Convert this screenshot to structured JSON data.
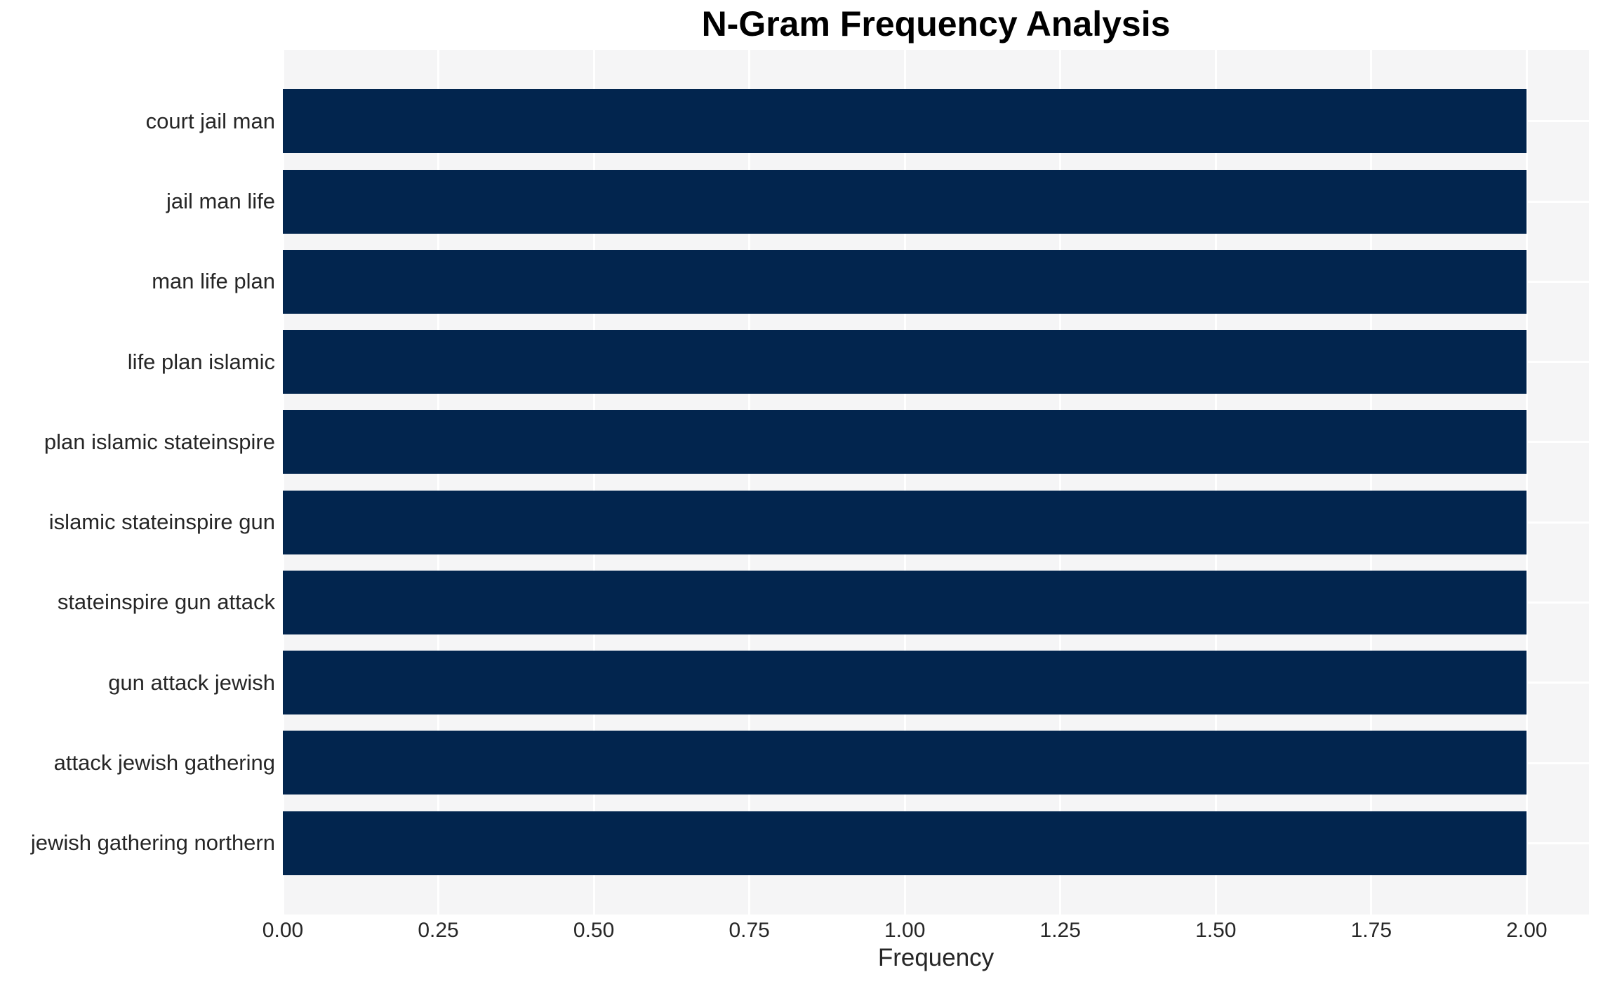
{
  "chart_data": {
    "type": "bar",
    "orientation": "horizontal",
    "title": "N-Gram Frequency Analysis",
    "xlabel": "Frequency",
    "ylabel": "",
    "categories": [
      "court jail man",
      "jail man life",
      "man life plan",
      "life plan islamic",
      "plan islamic stateinspire",
      "islamic stateinspire gun",
      "stateinspire gun attack",
      "gun attack jewish",
      "attack jewish gathering",
      "jewish gathering northern"
    ],
    "values": [
      2,
      2,
      2,
      2,
      2,
      2,
      2,
      2,
      2,
      2
    ],
    "xlim": [
      0,
      2.1
    ],
    "xticks": [
      0,
      0.25,
      0.5,
      0.75,
      1.0,
      1.25,
      1.5,
      1.75,
      2.0
    ],
    "xtick_labels": [
      "0.00",
      "0.25",
      "0.50",
      "0.75",
      "1.00",
      "1.25",
      "1.50",
      "1.75",
      "2.00"
    ],
    "grid": true,
    "legend": null,
    "colors": {
      "bar": "#02254e",
      "plot_background": "#f5f5f6",
      "gridline": "#ffffff",
      "tick_text": "#262626",
      "title_text": "#000000"
    }
  }
}
